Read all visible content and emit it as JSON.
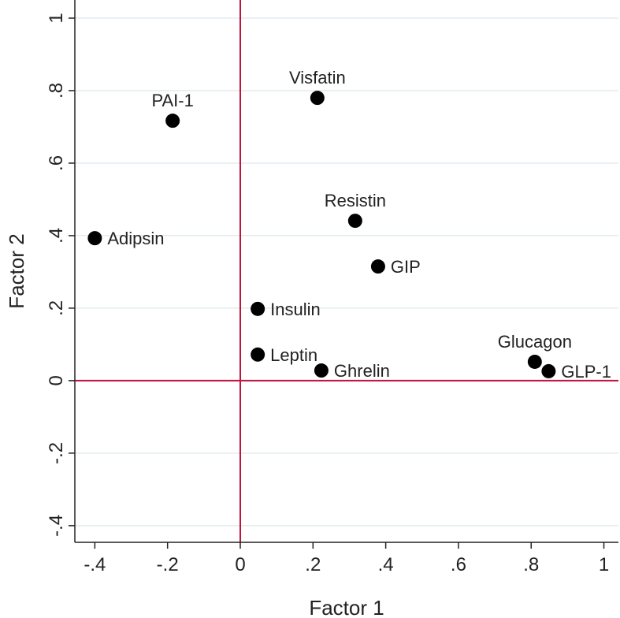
{
  "chart_data": {
    "type": "scatter",
    "title": "",
    "xlabel": "Factor 1",
    "ylabel": "Factor 2",
    "xlim": [
      -0.455,
      1.04
    ],
    "ylim": [
      -0.446,
      1.05
    ],
    "grid": true,
    "xticks": [
      -0.4,
      -0.2,
      0,
      0.2,
      0.4,
      0.6,
      0.8,
      1
    ],
    "xtick_labels": [
      "-.4",
      "-.2",
      "0",
      ".2",
      ".4",
      ".6",
      ".8",
      "1"
    ],
    "yticks": [
      -0.4,
      -0.2,
      0,
      0.2,
      0.4,
      0.6,
      0.8,
      1
    ],
    "ytick_labels": [
      "-.4",
      "-.2",
      "0",
      ".2",
      ".4",
      ".6",
      ".8",
      "1"
    ],
    "reference_lines": {
      "x": 0,
      "y": 0,
      "color": "#c0143c"
    },
    "points": [
      {
        "label": "PAI-1",
        "x": -0.186,
        "y": 0.717,
        "pos": "top"
      },
      {
        "label": "Visfatin",
        "x": 0.212,
        "y": 0.78,
        "pos": "top"
      },
      {
        "label": "Adipsin",
        "x": -0.4,
        "y": 0.393,
        "pos": "right"
      },
      {
        "label": "Resistin",
        "x": 0.316,
        "y": 0.441,
        "pos": "top"
      },
      {
        "label": "GIP",
        "x": 0.379,
        "y": 0.315,
        "pos": "right"
      },
      {
        "label": "Insulin",
        "x": 0.048,
        "y": 0.198,
        "pos": "right"
      },
      {
        "label": "Leptin",
        "x": 0.048,
        "y": 0.072,
        "pos": "right"
      },
      {
        "label": "Ghrelin",
        "x": 0.223,
        "y": 0.028,
        "pos": "right"
      },
      {
        "label": "Glucagon",
        "x": 0.81,
        "y": 0.052,
        "pos": "top"
      },
      {
        "label": "GLP-1",
        "x": 0.848,
        "y": 0.026,
        "pos": "right"
      }
    ]
  }
}
